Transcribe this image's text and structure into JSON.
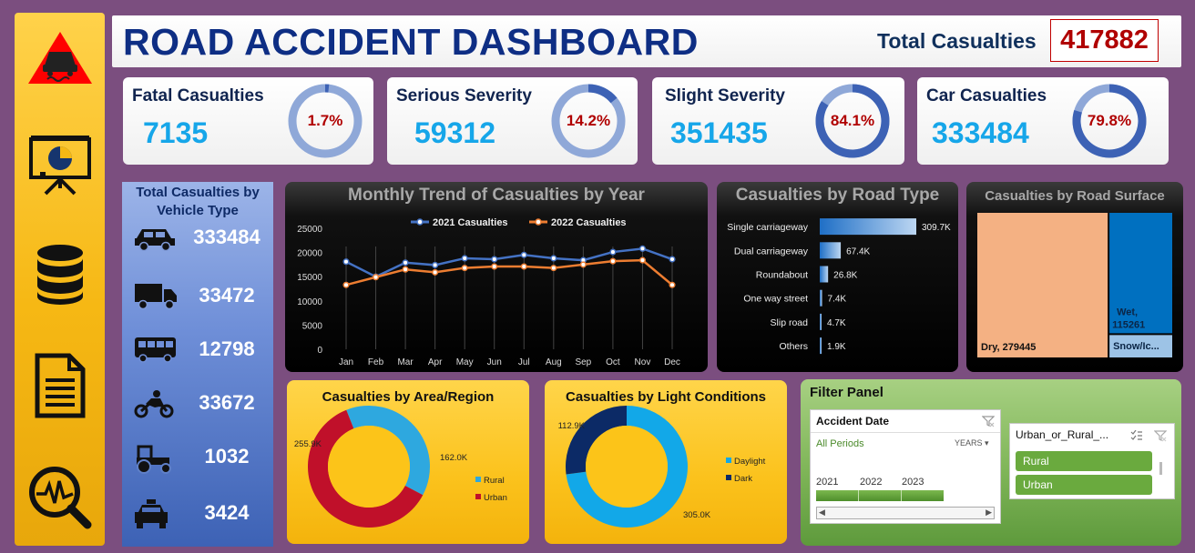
{
  "header": {
    "title": "ROAD ACCIDENT DASHBOARD",
    "total_label": "Total Casualties",
    "total_value": "417882"
  },
  "sidebar": {
    "icons": [
      "road-warning-icon",
      "presentation-chart-icon",
      "database-icon",
      "document-icon",
      "analytics-search-icon"
    ]
  },
  "kpis": [
    {
      "title": "Fatal Casualties",
      "value": "7135",
      "pct": "1.7%",
      "fraction": 0.017
    },
    {
      "title": "Serious Severity",
      "value": "59312",
      "pct": "14.2%",
      "fraction": 0.142
    },
    {
      "title": "Slight Severity",
      "value": "351435",
      "pct": "84.1%",
      "fraction": 0.841
    },
    {
      "title": "Car Casualties",
      "value": "333484",
      "pct": "79.8%",
      "fraction": 0.798
    }
  ],
  "vehicle": {
    "title": "Total Casualties by Vehicle Type",
    "rows": [
      {
        "icon": "car-icon",
        "value": "333484"
      },
      {
        "icon": "truck-icon",
        "value": "33472"
      },
      {
        "icon": "bus-icon",
        "value": "12798"
      },
      {
        "icon": "motorcycle-icon",
        "value": "33672"
      },
      {
        "icon": "tractor-icon",
        "value": "1032"
      },
      {
        "icon": "taxi-icon",
        "value": "3424"
      }
    ]
  },
  "chart_data": [
    {
      "type": "line",
      "title": "Monthly Trend of Casualties by Year",
      "categories": [
        "Jan",
        "Feb",
        "Mar",
        "Apr",
        "May",
        "Jun",
        "Jul",
        "Aug",
        "Sep",
        "Oct",
        "Nov",
        "Dec"
      ],
      "series": [
        {
          "name": "2021 Casualties",
          "color": "#4472c4",
          "values": [
            18100,
            15000,
            17900,
            17400,
            18800,
            18600,
            19500,
            18800,
            18400,
            20100,
            20800,
            18600
          ]
        },
        {
          "name": "2022 Casualties",
          "color": "#ed7d31",
          "values": [
            13300,
            14900,
            16500,
            15900,
            16800,
            17100,
            17100,
            16800,
            17500,
            18200,
            18400,
            13300
          ]
        }
      ],
      "y_ticks": [
        "0",
        "5000",
        "10000",
        "15000",
        "20000",
        "25000"
      ],
      "ylim": [
        0,
        25000
      ],
      "legend": "top"
    },
    {
      "type": "bar",
      "title": "Casualties by Road Type",
      "orientation": "horizontal",
      "categories": [
        "Single carriageway",
        "Dual carriageway",
        "Roundabout",
        "One way street",
        "Slip road",
        "Others"
      ],
      "values": [
        309700,
        67400,
        26800,
        7400,
        4700,
        1900
      ],
      "labels": [
        "309.7K",
        "67.4K",
        "26.8K",
        "7.4K",
        "4.7K",
        "1.9K"
      ]
    },
    {
      "type": "heatmap",
      "title": "Casualties by Road Surface",
      "items": [
        {
          "label": "Dry, 279445",
          "value": 279445,
          "color": "#f4b183"
        },
        {
          "label": "Wet, 115261",
          "value": 115261,
          "color": "#0070c0"
        },
        {
          "label": "Snow/Ic...",
          "value": 23176,
          "color": "#9dc3e6"
        }
      ]
    },
    {
      "type": "pie",
      "title": "Casualties by Area/Region",
      "items": [
        {
          "name": "Rural",
          "value": 162000,
          "label": "162.0K",
          "color": "#2ea8df"
        },
        {
          "name": "Urban",
          "value": 255900,
          "label": "255.9K",
          "color": "#c0102a"
        }
      ]
    },
    {
      "type": "pie",
      "title": "Casualties by Light Conditions",
      "items": [
        {
          "name": "Daylight",
          "value": 305000,
          "label": "305.0K",
          "color": "#12a8e8"
        },
        {
          "name": "Dark",
          "value": 112900,
          "label": "112.9K",
          "color": "#0c2a66"
        }
      ]
    }
  ],
  "filter": {
    "title": "Filter Panel",
    "date_slicer": {
      "header": "Accident Date",
      "period": "All Periods",
      "unit": "YEARS",
      "years": [
        "2021",
        "2022",
        "2023"
      ]
    },
    "area_slicer": {
      "header": "Urban_or_Rural_...",
      "options": [
        "Rural",
        "Urban"
      ]
    }
  }
}
